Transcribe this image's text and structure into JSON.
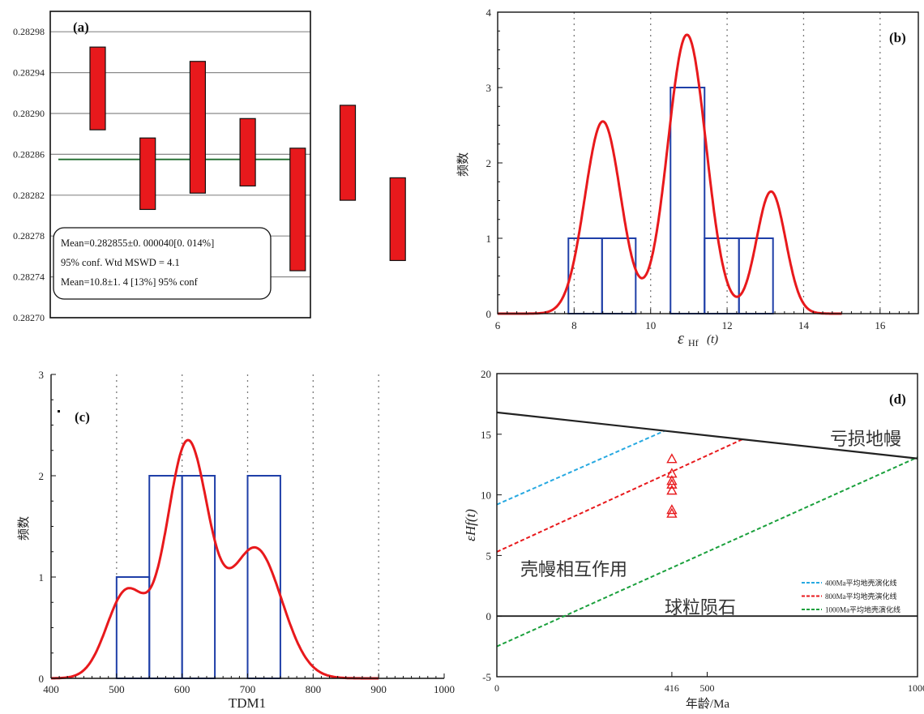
{
  "chart_data": [
    {
      "panel_label": "(a)",
      "type": "bar",
      "subtype": "weighted-mean error bars",
      "ylim": [
        0.2827,
        0.283
      ],
      "yticks": [
        "0.28270",
        "0.28274",
        "0.28278",
        "0.28282",
        "0.28286",
        "0.28290",
        "0.28294",
        "0.28298"
      ],
      "series": [
        {
          "values": [
            {
              "low": 0.282884,
              "high": 0.282965
            },
            {
              "low": 0.282806,
              "high": 0.282876
            },
            {
              "low": 0.282822,
              "high": 0.282951
            },
            {
              "low": 0.282829,
              "high": 0.282895
            },
            {
              "low": 0.282746,
              "high": 0.282866
            },
            {
              "low": 0.282815,
              "high": 0.282908
            },
            {
              "low": 0.282756,
              "high": 0.282837
            }
          ]
        }
      ],
      "mean_line": 0.282855,
      "bar_color": "#e8191c",
      "mean_line_color": "#1e6b2c",
      "info_box": [
        "Mean=0.282855±0. 000040[0. 014%]",
        "95% conf. Wtd MSWD = 4.1",
        "Mean=10.8±1. 4 [13%] 95% conf"
      ]
    },
    {
      "panel_label": "(b)",
      "type": "bar",
      "subtype": "histogram with probability density curve",
      "ylabel": "频数",
      "xlabel_main": "ε",
      "xlabel_sub": "Hf",
      "xlabel_tail": "(t)",
      "xlim": [
        6,
        17
      ],
      "ylim": [
        0,
        4
      ],
      "xticks": [
        6,
        8,
        10,
        12,
        14,
        16
      ],
      "yticks": [
        0,
        1,
        2,
        3,
        4
      ],
      "vgrid": [
        8,
        10,
        12,
        14,
        16
      ],
      "bins": [
        {
          "x0": 7.85,
          "x1": 8.73,
          "count": 1
        },
        {
          "x0": 8.73,
          "x1": 9.61,
          "count": 1
        },
        {
          "x0": 10.52,
          "x1": 11.41,
          "count": 3
        },
        {
          "x0": 11.41,
          "x1": 12.31,
          "count": 1
        },
        {
          "x0": 12.31,
          "x1": 13.2,
          "count": 1
        }
      ],
      "curve_peaks": [
        {
          "mu": 8.75,
          "sigma": 0.47,
          "amp": 2.55
        },
        {
          "mu": 10.95,
          "sigma": 0.5,
          "amp": 3.7
        },
        {
          "mu": 13.15,
          "sigma": 0.38,
          "amp": 1.62
        }
      ],
      "bar_color": "#1f3fa8",
      "curve_color": "#e8191c"
    },
    {
      "panel_label": "(c)",
      "type": "bar",
      "subtype": "histogram with probability density curve",
      "ylabel": "频数",
      "xlabel": "TDM1",
      "xlim": [
        400,
        1000
      ],
      "ylim": [
        0,
        3
      ],
      "xticks": [
        400,
        500,
        600,
        700,
        800,
        900,
        1000
      ],
      "yticks": [
        0,
        1,
        2,
        3
      ],
      "vgrid": [
        500,
        600,
        700,
        800,
        900
      ],
      "bins": [
        {
          "x0": 500,
          "x1": 550,
          "count": 1
        },
        {
          "x0": 550,
          "x1": 600,
          "count": 2
        },
        {
          "x0": 600,
          "x1": 650,
          "count": 2
        },
        {
          "x0": 700,
          "x1": 750,
          "count": 2
        }
      ],
      "curve_peaks": [
        {
          "mu": 515,
          "sigma": 30,
          "amp": 0.85
        },
        {
          "mu": 608,
          "sigma": 32,
          "amp": 2.3
        },
        {
          "mu": 712,
          "sigma": 40,
          "amp": 1.28
        }
      ],
      "bar_color": "#1f3fa8",
      "curve_color": "#e8191c"
    },
    {
      "panel_label": "(d)",
      "type": "scatter",
      "ylabel": "εHf(t)",
      "xlabel": "年龄/Ma",
      "xlim": [
        0,
        1000
      ],
      "ylim": [
        -5,
        20
      ],
      "xtick_labels": [
        "0",
        "416",
        "500",
        "1000"
      ],
      "xtick_values": [
        0,
        416,
        500,
        1000
      ],
      "yticks": [
        -5,
        0,
        5,
        10,
        15,
        20
      ],
      "series": [
        {
          "x": [
            416,
            416,
            416,
            416,
            416,
            416,
            416
          ],
          "y": [
            13.0,
            11.8,
            11.2,
            10.9,
            10.4,
            8.8,
            8.5
          ],
          "marker": "triangle-open",
          "color": "#e8191c"
        }
      ],
      "lines": {
        "depleted_mantle": {
          "x": [
            0,
            1000
          ],
          "y": [
            16.8,
            13.0
          ],
          "color": "#222222"
        },
        "chondrite": {
          "x": [
            0,
            1000
          ],
          "y": [
            0,
            0
          ],
          "color": "#222222"
        },
        "evolution_400": {
          "x": [
            0,
            400
          ],
          "y": [
            9.2,
            15.3
          ],
          "color": "#27a9e1"
        },
        "evolution_800": {
          "x": [
            0,
            585
          ],
          "y": [
            5.3,
            14.6
          ],
          "color": "#e8191c"
        },
        "evolution_1000": {
          "x": [
            0,
            1000
          ],
          "y": [
            -2.5,
            13.1
          ],
          "color": "#1aa03c"
        }
      },
      "region_labels": {
        "depleted_mantle": "亏损地幔",
        "crust_mantle": "壳幔相互作用",
        "chondrite": "球粒陨石"
      },
      "legend": [
        {
          "label": "400Ma平均地壳演化线",
          "color": "#27a9e1"
        },
        {
          "label": "800Ma平均地壳演化线",
          "color": "#e8191c"
        },
        {
          "label": "1000Ma平均地壳演化线",
          "color": "#1aa03c"
        }
      ]
    }
  ]
}
